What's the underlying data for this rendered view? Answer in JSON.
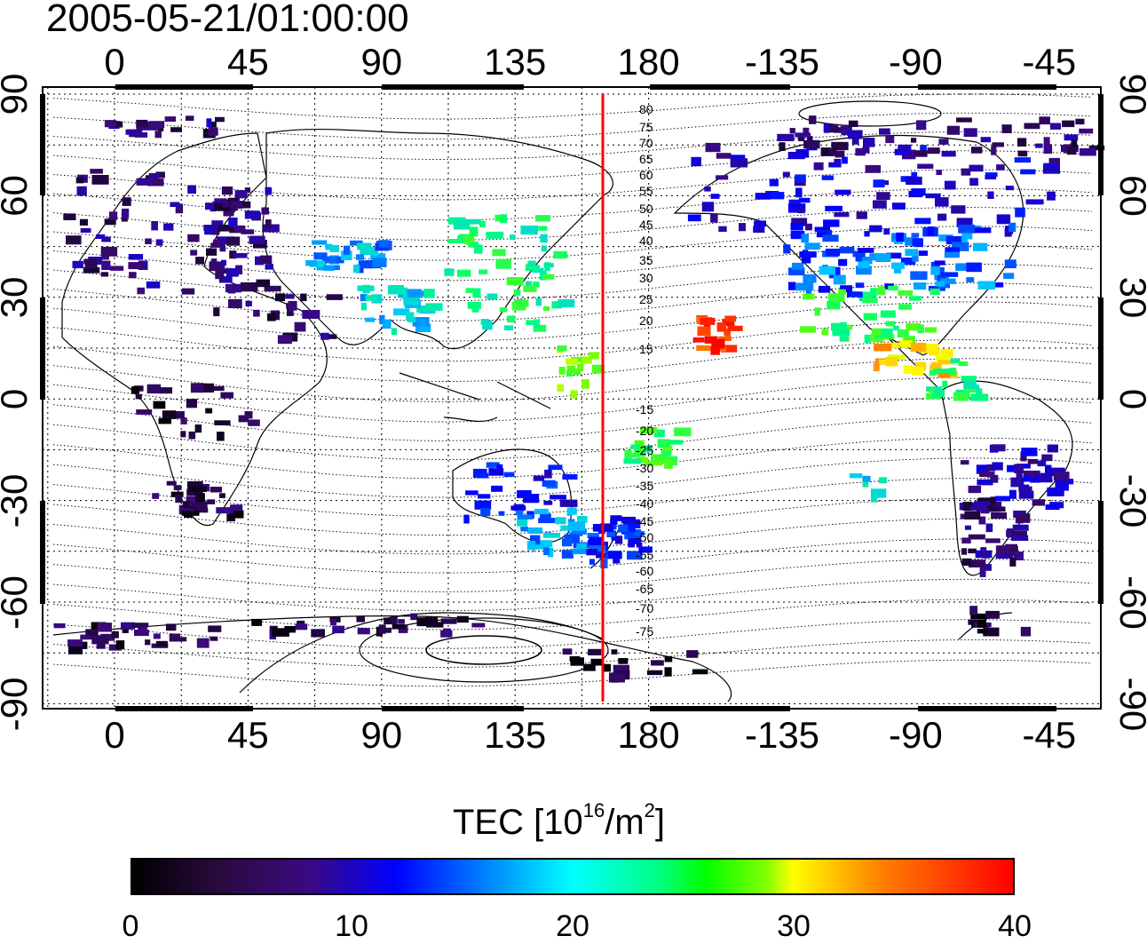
{
  "title": "2005-05-21/01:00:00",
  "map": {
    "lon_top_labels": [
      "0",
      "45",
      "90",
      "135",
      "180",
      "-135",
      "-90",
      "-45"
    ],
    "lon_bottom_labels": [
      "0",
      "45",
      "90",
      "135",
      "180",
      "-135",
      "-90",
      "-45"
    ],
    "lat_left_labels": [
      "90",
      "60",
      "30",
      "0",
      "-30",
      "-60",
      "-90"
    ],
    "lat_right_labels": [
      "90",
      "60",
      "30",
      "0",
      "-30",
      "-60",
      "-90"
    ],
    "meridian_line_color": "#ff0000",
    "contour_labels_north": [
      "80",
      "75",
      "70",
      "65",
      "60",
      "55",
      "50",
      "45",
      "40",
      "35",
      "30",
      "25",
      "20",
      "15"
    ],
    "contour_labels_south": [
      "-15",
      "-20",
      "-25",
      "-30",
      "-35",
      "-40",
      "-45",
      "-50",
      "-55",
      "-60",
      "-65",
      "-70",
      "-75"
    ]
  },
  "colorbar": {
    "title_prefix": "TEC  [10",
    "title_exp1": "16",
    "title_mid": "/m",
    "title_exp2": "2",
    "title_suffix": "]",
    "ticks": [
      "0",
      "10",
      "20",
      "30",
      "40"
    ],
    "range": [
      0,
      40
    ],
    "colors": [
      "#000000",
      "#3a0a80",
      "#0000ff",
      "#00ffff",
      "#00ff00",
      "#ffff00",
      "#ff0000"
    ]
  }
}
